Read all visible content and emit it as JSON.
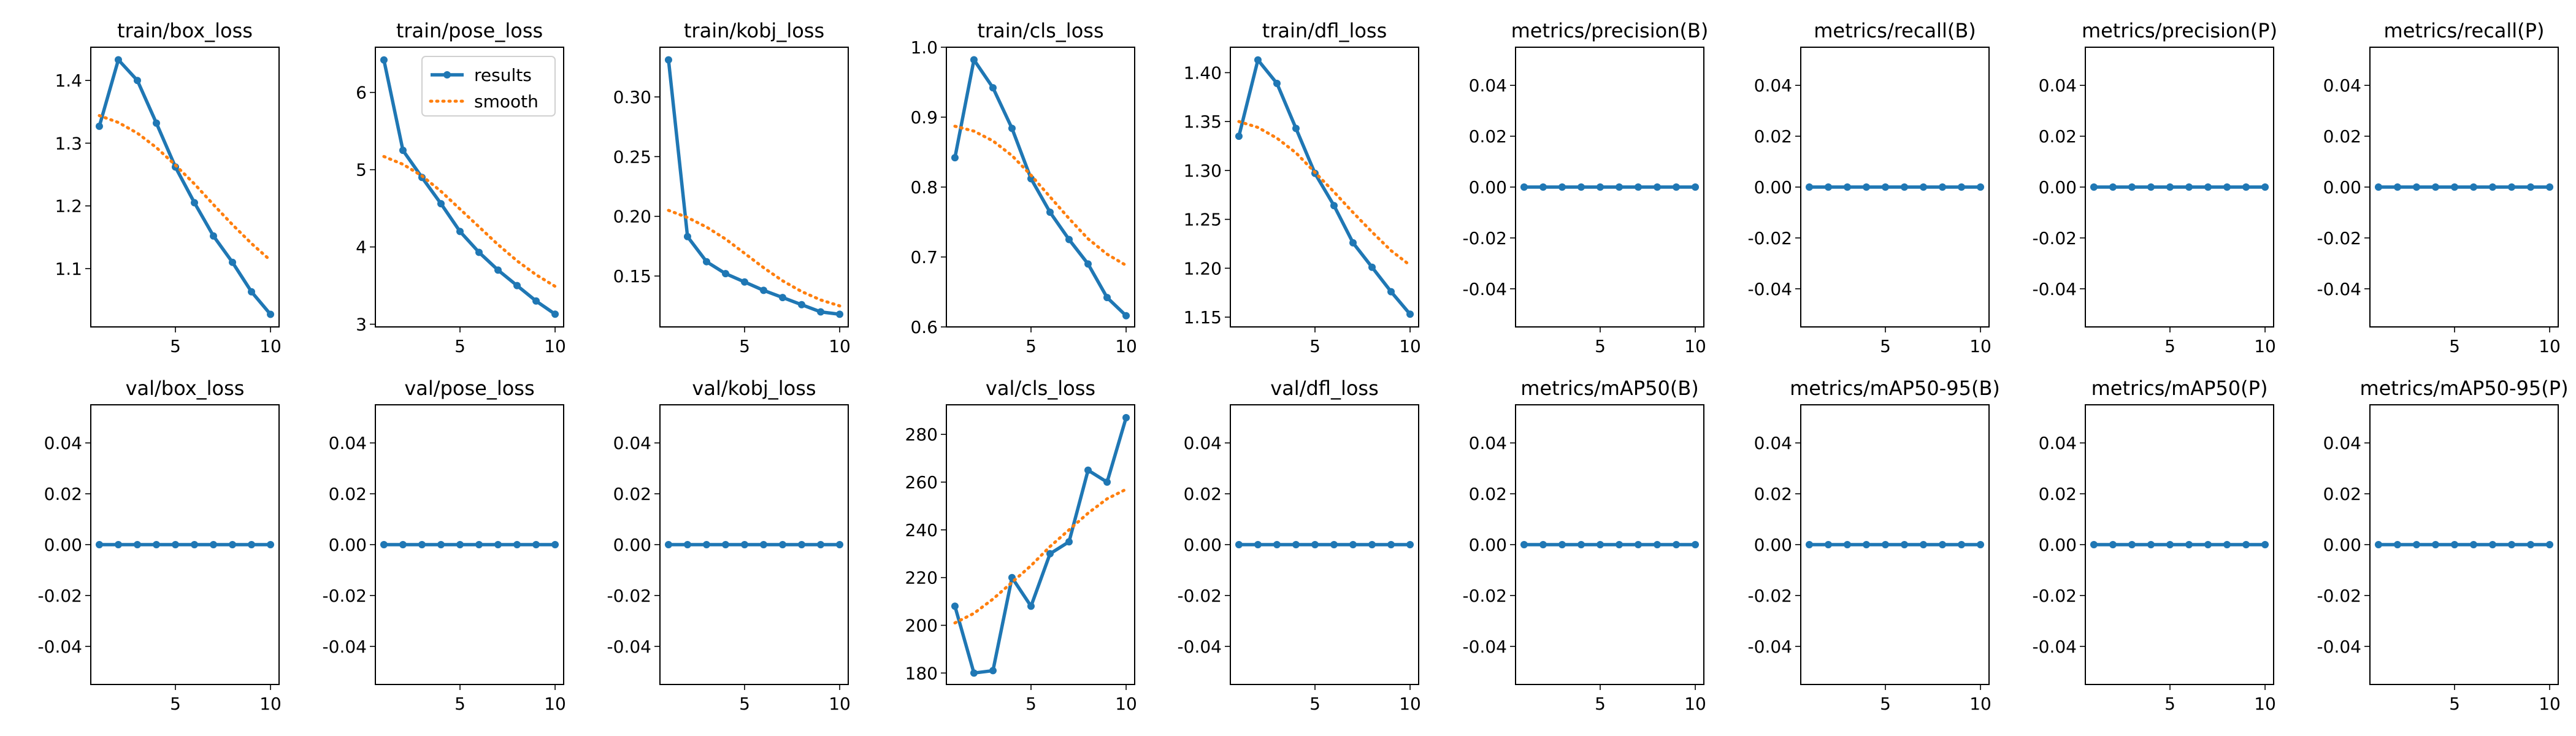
{
  "colors": {
    "results": "#1f77b4",
    "smooth": "#ff7f0e",
    "axes": "#000000",
    "background": "#ffffff"
  },
  "legend": {
    "placement": "top-right",
    "panel": "train/pose_loss",
    "results": "results",
    "smooth": "smooth"
  },
  "chart_data": [
    {
      "type": "line",
      "title": "train/box_loss",
      "x": [
        1,
        2,
        3,
        4,
        5,
        6,
        7,
        8,
        9,
        10
      ],
      "series": [
        {
          "name": "results",
          "style": "solid-markers",
          "values": [
            1.327,
            1.433,
            1.4,
            1.332,
            1.262,
            1.205,
            1.152,
            1.11,
            1.063,
            1.027
          ]
        },
        {
          "name": "smooth",
          "style": "dotted",
          "values": [
            1.344,
            1.333,
            1.316,
            1.293,
            1.265,
            1.235,
            1.202,
            1.17,
            1.14,
            1.113
          ]
        }
      ],
      "xticks": [
        "5",
        "10"
      ],
      "xlim": [
        0.55,
        10.45
      ],
      "yticks": [
        1.1,
        1.2,
        1.3,
        1.4
      ],
      "ylim": [
        1.007,
        1.453
      ]
    },
    {
      "type": "line",
      "title": "train/pose_loss",
      "x": [
        1,
        2,
        3,
        4,
        5,
        6,
        7,
        8,
        9,
        10
      ],
      "series": [
        {
          "name": "results",
          "style": "solid-markers",
          "values": [
            6.42,
            5.25,
            4.9,
            4.56,
            4.2,
            3.93,
            3.7,
            3.5,
            3.3,
            3.13
          ]
        },
        {
          "name": "smooth",
          "style": "dotted",
          "values": [
            5.17,
            5.07,
            4.92,
            4.72,
            4.49,
            4.26,
            4.03,
            3.82,
            3.64,
            3.49
          ]
        }
      ],
      "xticks": [
        "5",
        "10"
      ],
      "xlim": [
        0.55,
        10.45
      ],
      "yticks": [
        3,
        4,
        5,
        6
      ],
      "ylim": [
        2.965,
        6.585
      ]
    },
    {
      "type": "line",
      "title": "train/kobj_loss",
      "x": [
        1,
        2,
        3,
        4,
        5,
        6,
        7,
        8,
        9,
        10
      ],
      "series": [
        {
          "name": "results",
          "style": "solid-markers",
          "values": [
            0.331,
            0.183,
            0.162,
            0.152,
            0.145,
            0.138,
            0.132,
            0.126,
            0.12,
            0.118
          ]
        },
        {
          "name": "smooth",
          "style": "dotted",
          "values": [
            0.205,
            0.199,
            0.191,
            0.181,
            0.169,
            0.157,
            0.146,
            0.137,
            0.13,
            0.125
          ]
        }
      ],
      "xticks": [
        "5",
        "10"
      ],
      "xlim": [
        0.55,
        10.45
      ],
      "yticks": [
        0.15,
        0.2,
        0.25,
        0.3
      ],
      "ylim": [
        0.1074,
        0.3416
      ]
    },
    {
      "type": "line",
      "title": "train/cls_loss",
      "x": [
        1,
        2,
        3,
        4,
        5,
        6,
        7,
        8,
        9,
        10
      ],
      "series": [
        {
          "name": "results",
          "style": "solid-markers",
          "values": [
            0.842,
            0.982,
            0.942,
            0.884,
            0.812,
            0.764,
            0.725,
            0.69,
            0.642,
            0.616
          ]
        },
        {
          "name": "smooth",
          "style": "dotted",
          "values": [
            0.887,
            0.88,
            0.866,
            0.845,
            0.817,
            0.786,
            0.755,
            0.726,
            0.704,
            0.688
          ]
        }
      ],
      "xticks": [
        "5",
        "10"
      ],
      "xlim": [
        0.55,
        10.45
      ],
      "yticks": [
        0.6,
        0.7,
        0.8,
        0.9,
        1.0
      ],
      "ylim": [
        0.6,
        1.0
      ]
    },
    {
      "type": "line",
      "title": "train/dfl_loss",
      "x": [
        1,
        2,
        3,
        4,
        5,
        6,
        7,
        8,
        9,
        10
      ],
      "series": [
        {
          "name": "results",
          "style": "solid-markers",
          "values": [
            1.335,
            1.413,
            1.389,
            1.343,
            1.297,
            1.264,
            1.226,
            1.201,
            1.176,
            1.153
          ]
        },
        {
          "name": "smooth",
          "style": "dotted",
          "values": [
            1.35,
            1.344,
            1.333,
            1.318,
            1.298,
            1.278,
            1.257,
            1.237,
            1.218,
            1.203
          ]
        }
      ],
      "xticks": [
        "5",
        "10"
      ],
      "xlim": [
        0.55,
        10.45
      ],
      "yticks": [
        1.15,
        1.2,
        1.25,
        1.3,
        1.35,
        1.4
      ],
      "ylim": [
        1.14,
        1.426
      ]
    },
    {
      "type": "line",
      "title": "metrics/precision(B)",
      "x": [
        1,
        2,
        3,
        4,
        5,
        6,
        7,
        8,
        9,
        10
      ],
      "series": [
        {
          "name": "results",
          "style": "solid-markers",
          "values": [
            0,
            0,
            0,
            0,
            0,
            0,
            0,
            0,
            0,
            0
          ]
        }
      ],
      "xticks": [
        "5",
        "10"
      ],
      "xlim": [
        0.55,
        10.45
      ],
      "yticks": [
        -0.04,
        -0.02,
        0.0,
        0.02,
        0.04
      ],
      "ylim": [
        -0.055,
        0.055
      ]
    },
    {
      "type": "line",
      "title": "metrics/recall(B)",
      "x": [
        1,
        2,
        3,
        4,
        5,
        6,
        7,
        8,
        9,
        10
      ],
      "series": [
        {
          "name": "results",
          "style": "solid-markers",
          "values": [
            0,
            0,
            0,
            0,
            0,
            0,
            0,
            0,
            0,
            0
          ]
        }
      ],
      "xticks": [
        "5",
        "10"
      ],
      "xlim": [
        0.55,
        10.45
      ],
      "yticks": [
        -0.04,
        -0.02,
        0.0,
        0.02,
        0.04
      ],
      "ylim": [
        -0.055,
        0.055
      ]
    },
    {
      "type": "line",
      "title": "metrics/precision(P)",
      "x": [
        1,
        2,
        3,
        4,
        5,
        6,
        7,
        8,
        9,
        10
      ],
      "series": [
        {
          "name": "results",
          "style": "solid-markers",
          "values": [
            0,
            0,
            0,
            0,
            0,
            0,
            0,
            0,
            0,
            0
          ]
        }
      ],
      "xticks": [
        "5",
        "10"
      ],
      "xlim": [
        0.55,
        10.45
      ],
      "yticks": [
        -0.04,
        -0.02,
        0.0,
        0.02,
        0.04
      ],
      "ylim": [
        -0.055,
        0.055
      ]
    },
    {
      "type": "line",
      "title": "metrics/recall(P)",
      "x": [
        1,
        2,
        3,
        4,
        5,
        6,
        7,
        8,
        9,
        10
      ],
      "series": [
        {
          "name": "results",
          "style": "solid-markers",
          "values": [
            0,
            0,
            0,
            0,
            0,
            0,
            0,
            0,
            0,
            0
          ]
        }
      ],
      "xticks": [
        "5",
        "10"
      ],
      "xlim": [
        0.55,
        10.45
      ],
      "yticks": [
        -0.04,
        -0.02,
        0.0,
        0.02,
        0.04
      ],
      "ylim": [
        -0.055,
        0.055
      ]
    },
    {
      "type": "line",
      "title": "val/box_loss",
      "x": [
        1,
        2,
        3,
        4,
        5,
        6,
        7,
        8,
        9,
        10
      ],
      "series": [
        {
          "name": "results",
          "style": "solid-markers",
          "values": [
            0,
            0,
            0,
            0,
            0,
            0,
            0,
            0,
            0,
            0
          ]
        }
      ],
      "xticks": [
        "5",
        "10"
      ],
      "xlim": [
        0.55,
        10.45
      ],
      "yticks": [
        -0.04,
        -0.02,
        0.0,
        0.02,
        0.04
      ],
      "ylim": [
        -0.055,
        0.055
      ]
    },
    {
      "type": "line",
      "title": "val/pose_loss",
      "x": [
        1,
        2,
        3,
        4,
        5,
        6,
        7,
        8,
        9,
        10
      ],
      "series": [
        {
          "name": "results",
          "style": "solid-markers",
          "values": [
            0,
            0,
            0,
            0,
            0,
            0,
            0,
            0,
            0,
            0
          ]
        }
      ],
      "xticks": [
        "5",
        "10"
      ],
      "xlim": [
        0.55,
        10.45
      ],
      "yticks": [
        -0.04,
        -0.02,
        0.0,
        0.02,
        0.04
      ],
      "ylim": [
        -0.055,
        0.055
      ]
    },
    {
      "type": "line",
      "title": "val/kobj_loss",
      "x": [
        1,
        2,
        3,
        4,
        5,
        6,
        7,
        8,
        9,
        10
      ],
      "series": [
        {
          "name": "results",
          "style": "solid-markers",
          "values": [
            0,
            0,
            0,
            0,
            0,
            0,
            0,
            0,
            0,
            0
          ]
        }
      ],
      "xticks": [
        "5",
        "10"
      ],
      "xlim": [
        0.55,
        10.45
      ],
      "yticks": [
        -0.04,
        -0.02,
        0.0,
        0.02,
        0.04
      ],
      "ylim": [
        -0.055,
        0.055
      ]
    },
    {
      "type": "line",
      "title": "val/cls_loss",
      "x": [
        1,
        2,
        3,
        4,
        5,
        6,
        7,
        8,
        9,
        10
      ],
      "series": [
        {
          "name": "results",
          "style": "solid-markers",
          "values": [
            208,
            180,
            181,
            220,
            208,
            230,
            235,
            265,
            260,
            287
          ]
        },
        {
          "name": "smooth",
          "style": "dotted",
          "values": [
            201,
            205,
            211,
            218,
            225,
            233,
            240,
            247,
            253,
            257
          ]
        }
      ],
      "xticks": [
        "5",
        "10"
      ],
      "xlim": [
        0.55,
        10.45
      ],
      "yticks": [
        180,
        200,
        220,
        240,
        260,
        280
      ],
      "ylim": [
        175.2,
        292.4
      ]
    },
    {
      "type": "line",
      "title": "val/dfl_loss",
      "x": [
        1,
        2,
        3,
        4,
        5,
        6,
        7,
        8,
        9,
        10
      ],
      "series": [
        {
          "name": "results",
          "style": "solid-markers",
          "values": [
            0,
            0,
            0,
            0,
            0,
            0,
            0,
            0,
            0,
            0
          ]
        }
      ],
      "xticks": [
        "5",
        "10"
      ],
      "xlim": [
        0.55,
        10.45
      ],
      "yticks": [
        -0.04,
        -0.02,
        0.0,
        0.02,
        0.04
      ],
      "ylim": [
        -0.055,
        0.055
      ]
    },
    {
      "type": "line",
      "title": "metrics/mAP50(B)",
      "x": [
        1,
        2,
        3,
        4,
        5,
        6,
        7,
        8,
        9,
        10
      ],
      "series": [
        {
          "name": "results",
          "style": "solid-markers",
          "values": [
            0,
            0,
            0,
            0,
            0,
            0,
            0,
            0,
            0,
            0
          ]
        }
      ],
      "xticks": [
        "5",
        "10"
      ],
      "xlim": [
        0.55,
        10.45
      ],
      "yticks": [
        -0.04,
        -0.02,
        0.0,
        0.02,
        0.04
      ],
      "ylim": [
        -0.055,
        0.055
      ]
    },
    {
      "type": "line",
      "title": "metrics/mAP50-95(B)",
      "x": [
        1,
        2,
        3,
        4,
        5,
        6,
        7,
        8,
        9,
        10
      ],
      "series": [
        {
          "name": "results",
          "style": "solid-markers",
          "values": [
            0,
            0,
            0,
            0,
            0,
            0,
            0,
            0,
            0,
            0
          ]
        }
      ],
      "xticks": [
        "5",
        "10"
      ],
      "xlim": [
        0.55,
        10.45
      ],
      "yticks": [
        -0.04,
        -0.02,
        0.0,
        0.02,
        0.04
      ],
      "ylim": [
        -0.055,
        0.055
      ]
    },
    {
      "type": "line",
      "title": "metrics/mAP50(P)",
      "x": [
        1,
        2,
        3,
        4,
        5,
        6,
        7,
        8,
        9,
        10
      ],
      "series": [
        {
          "name": "results",
          "style": "solid-markers",
          "values": [
            0,
            0,
            0,
            0,
            0,
            0,
            0,
            0,
            0,
            0
          ]
        }
      ],
      "xticks": [
        "5",
        "10"
      ],
      "xlim": [
        0.55,
        10.45
      ],
      "yticks": [
        -0.04,
        -0.02,
        0.0,
        0.02,
        0.04
      ],
      "ylim": [
        -0.055,
        0.055
      ]
    },
    {
      "type": "line",
      "title": "metrics/mAP50-95(P)",
      "x": [
        1,
        2,
        3,
        4,
        5,
        6,
        7,
        8,
        9,
        10
      ],
      "series": [
        {
          "name": "results",
          "style": "solid-markers",
          "values": [
            0,
            0,
            0,
            0,
            0,
            0,
            0,
            0,
            0,
            0
          ]
        }
      ],
      "xticks": [
        "5",
        "10"
      ],
      "xlim": [
        0.55,
        10.45
      ],
      "yticks": [
        -0.04,
        -0.02,
        0.0,
        0.02,
        0.04
      ],
      "ylim": [
        -0.055,
        0.055
      ]
    }
  ]
}
